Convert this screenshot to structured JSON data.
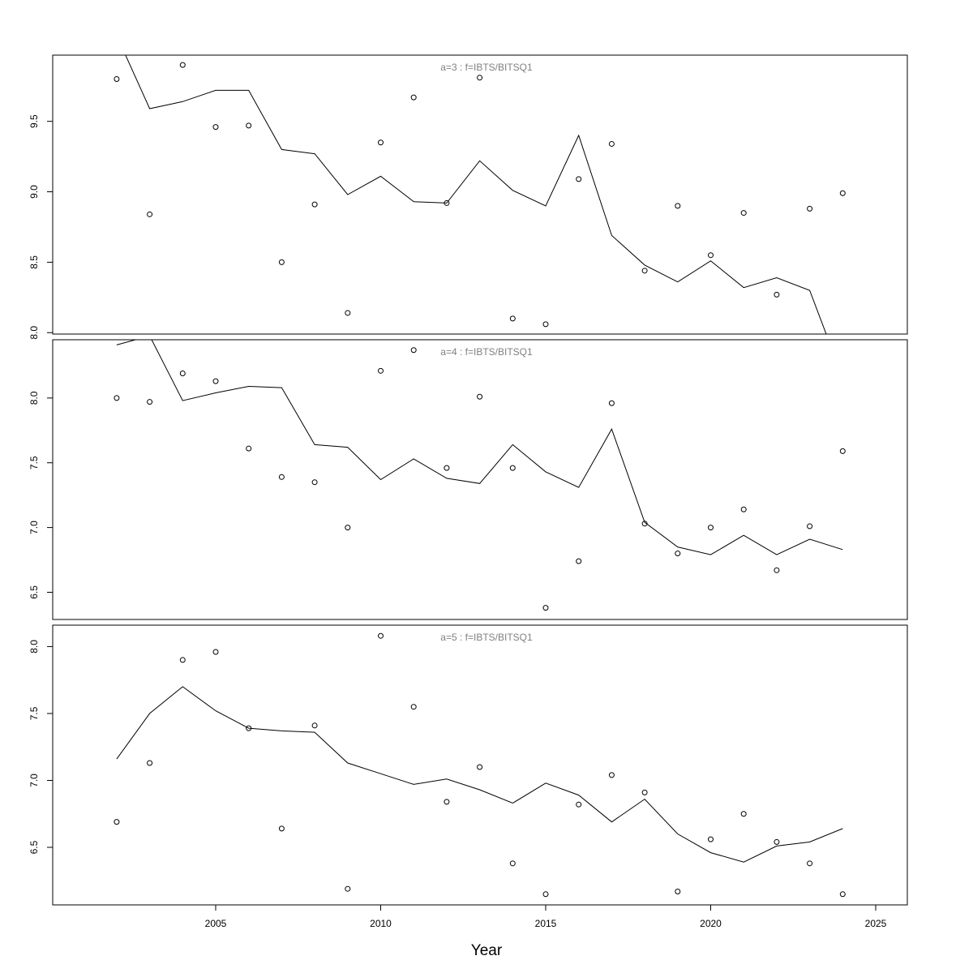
{
  "chart_data": {
    "type": "scatter",
    "xlabel": "Year",
    "x_ticks": [
      2005,
      2010,
      2015,
      2020,
      2025
    ],
    "xlim": [
      2000.2,
      2026
    ],
    "years": [
      2002,
      2003,
      2004,
      2005,
      2006,
      2007,
      2008,
      2009,
      2010,
      2011,
      2012,
      2013,
      2014,
      2015,
      2016,
      2017,
      2018,
      2019,
      2020,
      2021,
      2022,
      2023,
      2024
    ],
    "panels": [
      {
        "title": "a=3  :  f=IBTS/BITSQ1",
        "ylim": [
          7.99,
          9.97
        ],
        "y_ticks": [
          "8.0",
          "8.5",
          "9.0",
          "9.5"
        ],
        "observed": [
          9.8,
          8.84,
          9.9,
          9.46,
          9.47,
          8.5,
          8.91,
          8.14,
          9.35,
          9.67,
          8.92,
          9.81,
          8.1,
          8.06,
          9.09,
          9.34,
          8.44,
          8.9,
          8.55,
          8.85,
          8.27,
          8.88,
          8.99
        ],
        "fitted": [
          10.11,
          9.59,
          9.64,
          9.72,
          9.72,
          9.3,
          9.27,
          8.98,
          9.11,
          8.93,
          8.92,
          9.22,
          9.01,
          8.9,
          9.4,
          8.69,
          8.48,
          8.36,
          8.51,
          8.32,
          8.39,
          8.3,
          7.68
        ]
      },
      {
        "title": "a=4  :  f=IBTS/BITSQ1",
        "ylim": [
          6.29,
          8.45
        ],
        "y_ticks": [
          "6.5",
          "7.0",
          "7.5",
          "8.0"
        ],
        "observed": [
          8.0,
          7.97,
          8.19,
          8.13,
          7.61,
          7.39,
          7.35,
          7.0,
          8.21,
          8.37,
          7.46,
          8.01,
          7.46,
          6.38,
          6.74,
          7.96,
          7.03,
          6.8,
          7.0,
          7.14,
          6.67,
          7.01,
          7.59
        ],
        "fitted": [
          8.41,
          8.48,
          7.98,
          8.04,
          8.09,
          8.08,
          7.64,
          7.62,
          7.37,
          7.53,
          7.38,
          7.34,
          7.64,
          7.43,
          7.31,
          7.76,
          7.04,
          6.85,
          6.79,
          6.94,
          6.79,
          6.91,
          6.83
        ]
      },
      {
        "title": "a=5  :  f=IBTS/BITSQ1",
        "ylim": [
          6.07,
          8.16
        ],
        "y_ticks": [
          "6.5",
          "7.0",
          "7.5",
          "8.0"
        ],
        "observed": [
          6.69,
          7.13,
          7.9,
          7.96,
          7.39,
          6.64,
          7.41,
          6.19,
          8.08,
          7.55,
          6.84,
          7.1,
          6.38,
          6.15,
          6.82,
          7.04,
          6.91,
          6.17,
          6.56,
          6.75,
          6.54,
          6.38,
          6.15
        ],
        "fitted": [
          7.16,
          7.5,
          7.7,
          7.52,
          7.39,
          7.37,
          7.36,
          7.13,
          7.05,
          6.97,
          7.01,
          6.93,
          6.83,
          6.98,
          6.89,
          6.69,
          6.86,
          6.6,
          6.46,
          6.39,
          6.51,
          6.54,
          6.64
        ]
      }
    ]
  }
}
